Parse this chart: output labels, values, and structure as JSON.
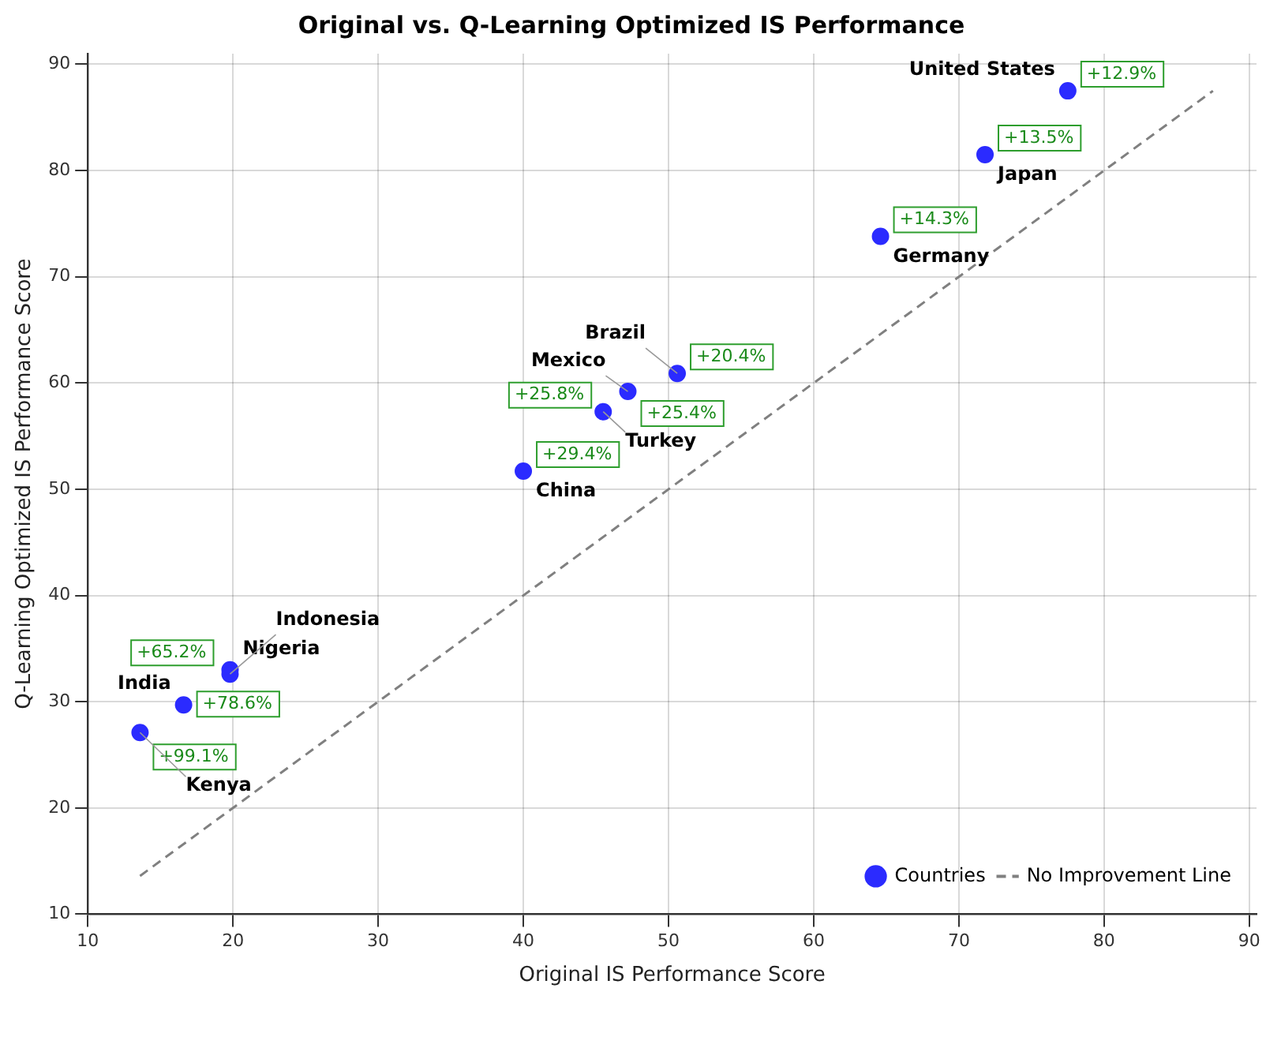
{
  "chart_data": {
    "type": "scatter",
    "title": "Original vs. Q-Learning Optimized IS Performance",
    "xlabel": "Original IS Performance Score",
    "ylabel": "Q-Learning Optimized IS Performance Score",
    "xlim": [
      10,
      90.5
    ],
    "ylim": [
      10,
      91
    ],
    "xticks": [
      10,
      20,
      30,
      40,
      50,
      60,
      70,
      80,
      90
    ],
    "yticks": [
      10,
      20,
      30,
      40,
      50,
      60,
      70,
      80,
      90
    ],
    "grid": true,
    "legend": "bottom right",
    "marker": "circle",
    "series": [
      {
        "name": "Countries",
        "type": "scatter",
        "color": "#2b2bff",
        "x": [
          77.5,
          71.8,
          64.6,
          50.6,
          47.2,
          45.5,
          40.0,
          19.8,
          19.8,
          16.6,
          13.6
        ],
        "values": [
          87.5,
          81.5,
          73.8,
          60.9,
          59.2,
          57.3,
          51.7,
          33.0,
          32.6,
          29.7,
          27.1
        ]
      },
      {
        "name": "No Improvement Line",
        "type": "line",
        "color": "#808080",
        "line_style": "dashed",
        "marker": "none",
        "x": [
          13.6,
          87.5
        ],
        "values": [
          13.6,
          87.5
        ]
      }
    ],
    "annotations": [
      {
        "text": "United States",
        "x": 77.5,
        "y": 87.5
      },
      {
        "text": "+12.9%",
        "x": 77.5,
        "y": 87.5
      },
      {
        "text": "Japan",
        "x": 71.8,
        "y": 81.5
      },
      {
        "text": "+13.5%",
        "x": 71.8,
        "y": 81.5
      },
      {
        "text": "Germany",
        "x": 64.6,
        "y": 73.8
      },
      {
        "text": "+14.3%",
        "x": 64.6,
        "y": 73.8
      },
      {
        "text": "Brazil",
        "x": 50.6,
        "y": 60.9
      },
      {
        "text": "+20.4%",
        "x": 50.6,
        "y": 60.9
      },
      {
        "text": "Mexico",
        "x": 47.2,
        "y": 59.2
      },
      {
        "text": "+25.4%",
        "x": 47.2,
        "y": 59.2
      },
      {
        "text": "Turkey",
        "x": 45.5,
        "y": 57.3
      },
      {
        "text": "+25.8%",
        "x": 45.5,
        "y": 57.3
      },
      {
        "text": "China",
        "x": 40.0,
        "y": 51.7
      },
      {
        "text": "+29.4%",
        "x": 40.0,
        "y": 51.7
      },
      {
        "text": "Nigeria",
        "x": 19.8,
        "y": 33.0
      },
      {
        "text": "Indonesia",
        "x": 19.8,
        "y": 32.6
      },
      {
        "text": "+65.2%",
        "x": 19.8,
        "y": 32.6
      },
      {
        "text": "India",
        "x": 16.6,
        "y": 29.7
      },
      {
        "text": "+78.6%",
        "x": 16.6,
        "y": 29.7
      },
      {
        "text": "Kenya",
        "x": 13.6,
        "y": 27.1
      },
      {
        "text": "+99.1%",
        "x": 13.6,
        "y": 27.1
      }
    ]
  }
}
